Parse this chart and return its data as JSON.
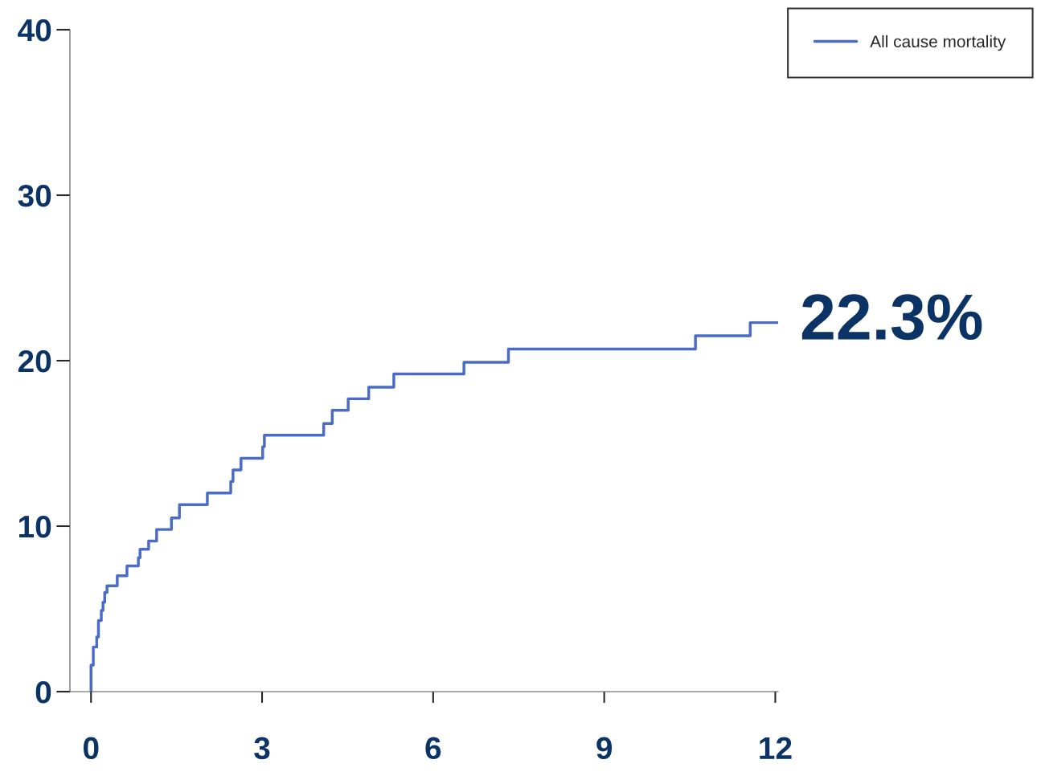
{
  "chart_data": {
    "type": "step",
    "series": [
      {
        "name": "All cause mortality",
        "color": "#4a6cc8",
        "x": [
          0,
          0,
          0.04,
          0.1,
          0.13,
          0.18,
          0.21,
          0.24,
          0.28,
          0.46,
          0.63,
          0.83,
          0.86,
          1.01,
          1.15,
          1.41,
          1.55,
          2.04,
          2.45,
          2.49,
          2.63,
          3.01,
          3.04,
          4.08,
          4.23,
          4.51,
          4.87,
          5.31,
          6.54,
          7.32,
          10.6,
          11.56,
          12.04
        ],
        "values": [
          0,
          1.6,
          2.7,
          3.3,
          4.3,
          4.9,
          5.4,
          6.0,
          6.4,
          7.0,
          7.6,
          8.1,
          8.6,
          9.1,
          9.8,
          10.5,
          11.3,
          12.0,
          12.7,
          13.4,
          14.1,
          14.8,
          15.5,
          16.2,
          17.0,
          17.7,
          18.4,
          19.2,
          19.9,
          20.7,
          21.5,
          22.3,
          22.3
        ]
      }
    ],
    "xlim": [
      -0.37,
      12.05
    ],
    "xticks": [
      0,
      3,
      6,
      9,
      12
    ],
    "ylim": [
      0,
      40
    ],
    "yticks": [
      0,
      10,
      20,
      30,
      40
    ],
    "annotations": [
      {
        "text": "22.3%",
        "x": 12.04,
        "y": 22.3
      }
    ],
    "legend": "top right",
    "grid": false,
    "line_style": "solid",
    "marker": "none"
  }
}
